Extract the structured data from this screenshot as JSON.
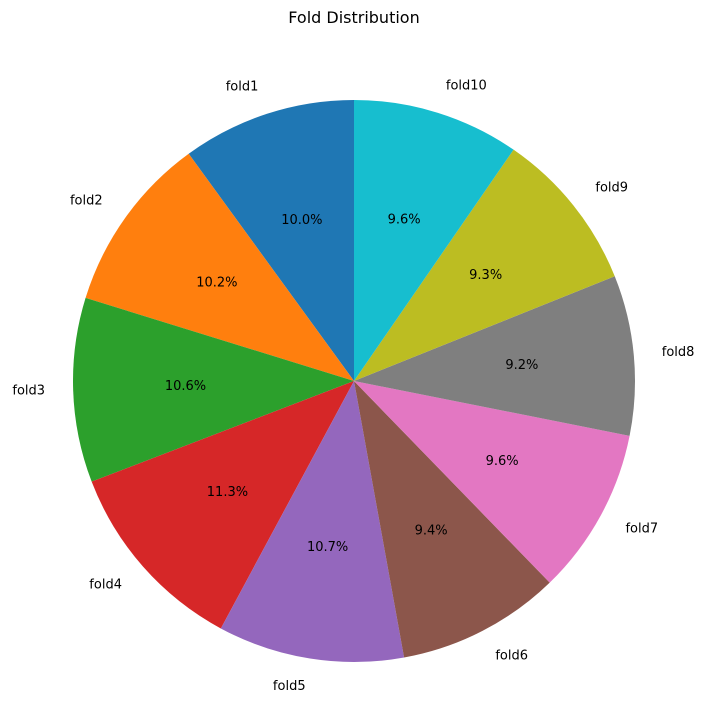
{
  "chart_data": {
    "type": "pie",
    "title": "Fold Distribution",
    "start_angle_deg": 90,
    "direction": "counterclockwise",
    "slices": [
      {
        "label": "fold1",
        "value": 10.0,
        "pct_label": "10.0%",
        "color": "#1f77b4"
      },
      {
        "label": "fold2",
        "value": 10.2,
        "pct_label": "10.2%",
        "color": "#ff7f0e"
      },
      {
        "label": "fold3",
        "value": 10.6,
        "pct_label": "10.6%",
        "color": "#2ca02c"
      },
      {
        "label": "fold4",
        "value": 11.3,
        "pct_label": "11.3%",
        "color": "#d62728"
      },
      {
        "label": "fold5",
        "value": 10.7,
        "pct_label": "10.7%",
        "color": "#9467bd"
      },
      {
        "label": "fold6",
        "value": 9.4,
        "pct_label": "9.4%",
        "color": "#8c564b"
      },
      {
        "label": "fold7",
        "value": 9.6,
        "pct_label": "9.6%",
        "color": "#e377c2"
      },
      {
        "label": "fold8",
        "value": 9.2,
        "pct_label": "9.2%",
        "color": "#7f7f7f"
      },
      {
        "label": "fold9",
        "value": 9.3,
        "pct_label": "9.3%",
        "color": "#bcbd22"
      },
      {
        "label": "fold10",
        "value": 9.6,
        "pct_label": "9.6%",
        "color": "#17becf"
      }
    ]
  }
}
